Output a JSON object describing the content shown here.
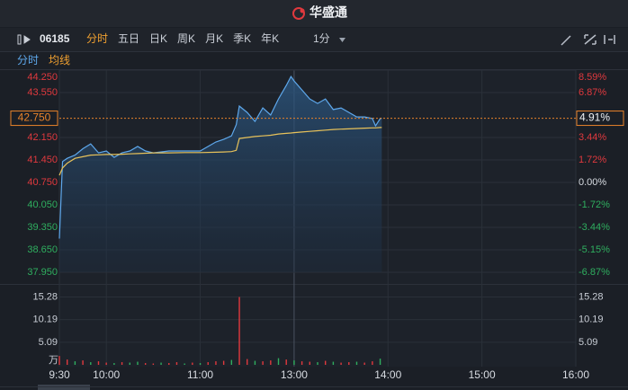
{
  "header": {
    "logo": "华盛通"
  },
  "toolbar": {
    "symbol": "06185",
    "tabs": [
      "分时",
      "五日",
      "日K",
      "周K",
      "月K",
      "季K",
      "年K"
    ],
    "interval": "1分"
  },
  "subtabs": [
    "分时",
    "均线"
  ],
  "chart_data": [
    {
      "type": "line",
      "x": [
        0,
        2,
        5,
        10,
        15,
        20,
        25,
        30,
        35,
        40,
        45,
        50,
        55,
        60,
        70,
        80,
        90,
        100,
        105,
        110,
        113,
        115,
        120,
        125,
        130,
        135,
        140,
        145,
        148,
        150,
        155,
        160,
        165,
        170,
        175,
        180,
        185,
        190,
        195,
        200,
        202,
        205,
        206
      ],
      "series": [
        {
          "color": "#5ea8ec",
          "values": [
            39.0,
            41.4,
            41.5,
            41.6,
            41.8,
            41.95,
            41.67,
            41.73,
            41.53,
            41.67,
            41.73,
            41.87,
            41.73,
            41.67,
            41.73,
            41.73,
            41.73,
            42.01,
            42.09,
            42.2,
            42.55,
            43.13,
            42.93,
            42.65,
            43.07,
            42.85,
            43.35,
            43.77,
            44.05,
            43.91,
            43.63,
            43.35,
            43.21,
            43.35,
            43.02,
            43.07,
            42.93,
            42.79,
            42.79,
            42.74,
            42.51,
            42.74,
            42.75
          ]
        },
        {
          "color": "#e8c25a",
          "values": [
            40.97,
            41.2,
            41.35,
            41.5,
            41.55,
            41.6,
            41.61,
            41.62,
            41.62,
            41.63,
            41.64,
            41.65,
            41.66,
            41.67,
            41.67,
            41.68,
            41.68,
            41.69,
            41.7,
            41.71,
            41.75,
            42.12,
            42.15,
            42.18,
            42.2,
            42.22,
            42.26,
            42.28,
            42.29,
            42.3,
            42.32,
            42.34,
            42.36,
            42.38,
            42.4,
            42.41,
            42.42,
            42.43,
            42.44,
            42.45,
            42.45,
            42.46,
            42.46
          ]
        }
      ],
      "area": true,
      "xlim": [
        0,
        330
      ],
      "ylim": [
        37.95,
        44.25
      ],
      "yticks": [
        {
          "value": 37.95,
          "label": "37.950"
        },
        {
          "value": 38.65,
          "label": "38.650"
        },
        {
          "value": 39.35,
          "label": "39.350"
        },
        {
          "value": 40.05,
          "label": "40.050"
        },
        {
          "value": 40.75,
          "label": "40.750"
        },
        {
          "value": 41.45,
          "label": "41.450"
        },
        {
          "value": 42.15,
          "label": "42.150"
        },
        {
          "value": 43.55,
          "label": "43.550"
        },
        {
          "value": 44.25,
          "label": "44.250"
        }
      ],
      "y2lim": [
        -6.87,
        8.59
      ],
      "y2ticks": [
        {
          "value": -6.87,
          "label": "-6.87%"
        },
        {
          "value": -5.15,
          "label": "-5.15%"
        },
        {
          "value": -3.44,
          "label": "-3.44%"
        },
        {
          "value": -1.72,
          "label": "-1.72%"
        },
        {
          "value": 0,
          "label": "0.00%"
        },
        {
          "value": 1.72,
          "label": "1.72%"
        },
        {
          "value": 3.44,
          "label": "3.44%"
        },
        {
          "value": 6.87,
          "label": "6.87%"
        },
        {
          "value": 8.59,
          "label": "8.59%"
        }
      ],
      "last_price": {
        "value": 42.75,
        "label": "42.750"
      },
      "last_change": {
        "value": 4.91,
        "label": "4.91%"
      },
      "up_color": "#e0393e",
      "flat_color": "#d8dce2",
      "down_color": "#2fae5f"
    },
    {
      "type": "bar",
      "x": [
        0,
        5,
        10,
        15,
        20,
        25,
        30,
        35,
        40,
        45,
        50,
        55,
        60,
        65,
        70,
        75,
        80,
        85,
        90,
        95,
        100,
        105,
        110,
        115,
        120,
        125,
        130,
        135,
        140,
        145,
        150,
        155,
        160,
        165,
        170,
        175,
        180,
        185,
        190,
        195,
        200,
        205
      ],
      "values": [
        2.0,
        1.2,
        0.8,
        1.0,
        0.6,
        0.8,
        0.5,
        0.4,
        0.6,
        0.5,
        0.7,
        0.4,
        0.3,
        0.5,
        0.4,
        0.6,
        0.3,
        0.5,
        0.4,
        0.6,
        0.8,
        0.9,
        1.1,
        15.28,
        1.3,
        0.9,
        0.8,
        1.0,
        1.5,
        1.2,
        1.0,
        0.8,
        0.7,
        0.6,
        0.9,
        0.7,
        0.5,
        0.6,
        0.7,
        0.5,
        0.8,
        1.4
      ],
      "colors": [
        "#e0393e",
        "#e0393e",
        "#2fae5f",
        "#e0393e",
        "#2fae5f",
        "#e0393e",
        "#e0393e",
        "#2fae5f",
        "#e0393e",
        "#2fae5f",
        "#2fae5f",
        "#e0393e",
        "#e0393e",
        "#2fae5f",
        "#e0393e",
        "#e0393e",
        "#2fae5f",
        "#e0393e",
        "#2fae5f",
        "#e0393e",
        "#e0393e",
        "#e0393e",
        "#2fae5f",
        "#e0393e",
        "#e0393e",
        "#2fae5f",
        "#e0393e",
        "#e0393e",
        "#2fae5f",
        "#e0393e",
        "#2fae5f",
        "#e0393e",
        "#e0393e",
        "#2fae5f",
        "#e0393e",
        "#2fae5f",
        "#e0393e",
        "#e0393e",
        "#2fae5f",
        "#e0393e",
        "#e0393e",
        "#2fae5f"
      ],
      "xlim": [
        0,
        330
      ],
      "xticks": [
        {
          "value": 0,
          "label": "9:30"
        },
        {
          "value": 30,
          "label": "10:00"
        },
        {
          "value": 90,
          "label": "11:00"
        },
        {
          "value": 150,
          "label": "13:00"
        },
        {
          "value": 210,
          "label": "14:00"
        },
        {
          "value": 270,
          "label": "15:00"
        },
        {
          "value": 330,
          "label": "16:00"
        }
      ],
      "ylim": [
        0,
        17
      ],
      "yticks": [
        5.09,
        10.19,
        15.28
      ],
      "y_unit": "万"
    }
  ]
}
